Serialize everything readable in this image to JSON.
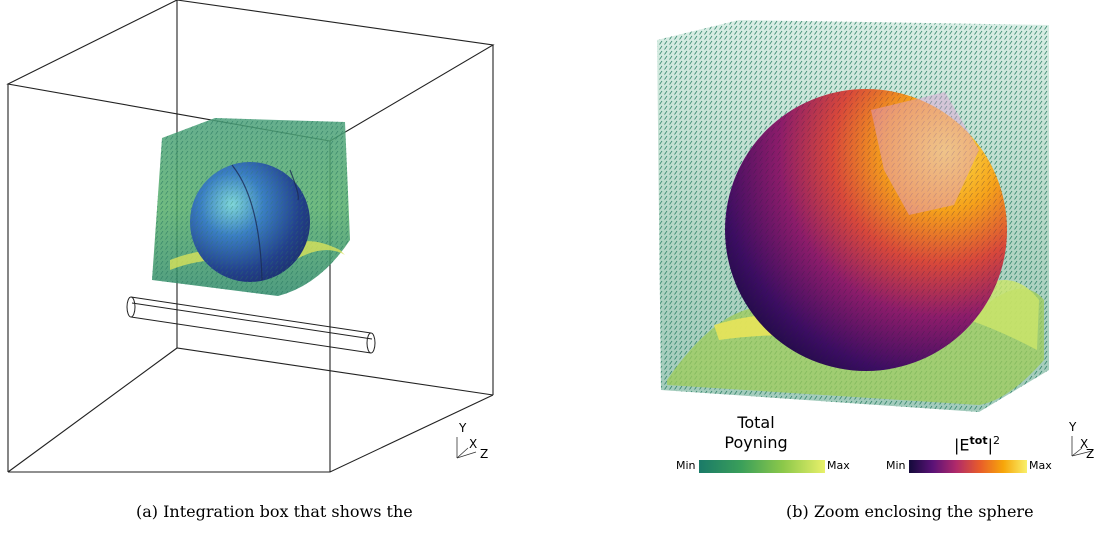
{
  "panel_a": {
    "caption": "(a) Integration box that shows the",
    "axes": {
      "y": "Y",
      "x": "X",
      "z": "Z"
    }
  },
  "panel_b": {
    "caption": "(b) Zoom enclosing the sphere",
    "axes": {
      "y": "Y",
      "x": "X",
      "z": "Z"
    },
    "colorbar_poynting": {
      "title_line1": "Total",
      "title_line2": "Poyning",
      "min": "Min",
      "max": "Max",
      "colors": [
        "#1a7a68",
        "#3a9f5a",
        "#8cc84a",
        "#e8f06a"
      ]
    },
    "colorbar_field": {
      "title_base": "|E",
      "title_sup_bold": "tot",
      "title_end": "|",
      "title_exp": "2",
      "min": "Min",
      "max": "Max",
      "colors": [
        "#140a3a",
        "#5a1277",
        "#b02a6a",
        "#e85c2a",
        "#f7a60a",
        "#f8f06a"
      ]
    }
  }
}
